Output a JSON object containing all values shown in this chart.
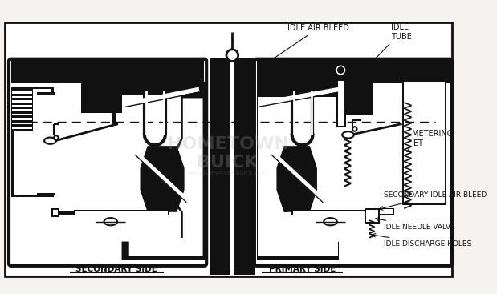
{
  "bg": "#f5f3ef",
  "black": "#111111",
  "white": "#ffffff",
  "gray_light": "#e8e5e0",
  "gray_med": "#c0bbb4",
  "text_color": "#111111",
  "labels": {
    "idle_air_bleed": "IDLE AIR BLEED",
    "idle_tube": "IDLE\nTUBE",
    "metering_jet": "METERING\nJET",
    "secondary_idle_air_bleed": "SECONDARY IDLE AIR BLEED",
    "idle_needle_valve": "IDLE NEEDLE VALVE",
    "idle_discharge_holes": "IDLE DISCHARGE HOLES",
    "secondary_side": "SECONDARY SIDE",
    "primary_side": "PRIMARY SIDE"
  },
  "font_size": 6.5,
  "font_size_bottom": 7.5
}
